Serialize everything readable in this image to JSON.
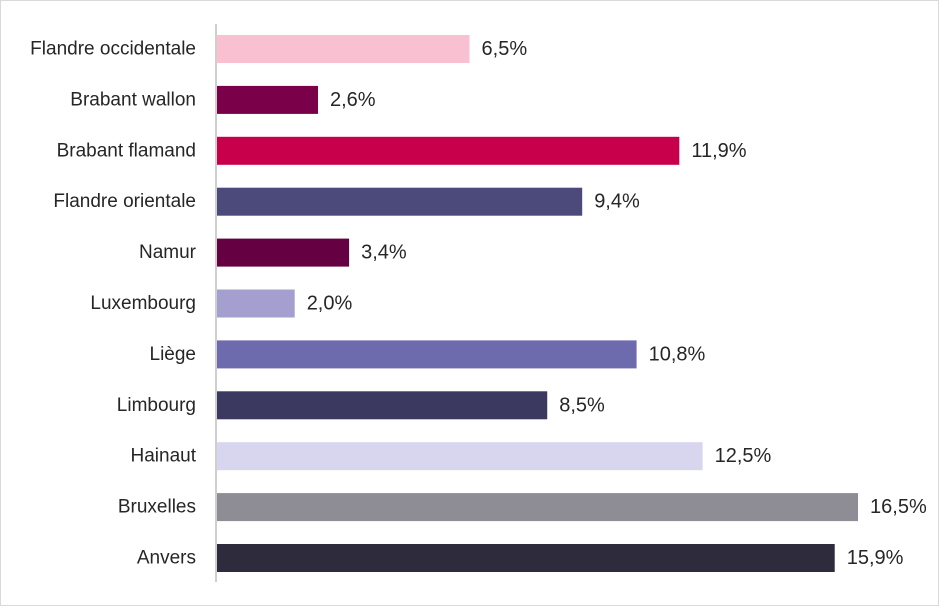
{
  "chart_data": {
    "type": "bar",
    "orientation": "horizontal",
    "title": "",
    "xlabel": "",
    "ylabel": "",
    "grid": false,
    "legend": "none",
    "xlim": [
      0,
      17
    ],
    "categories": [
      "Flandre occidentale",
      "Brabant wallon",
      "Brabant flamand",
      "Flandre orientale",
      "Namur",
      "Luxembourg",
      "Liège",
      "Limbourg",
      "Hainaut",
      "Bruxelles",
      "Anvers"
    ],
    "values": [
      6.5,
      2.6,
      11.9,
      9.4,
      3.4,
      2.0,
      10.8,
      8.5,
      12.5,
      16.5,
      15.9
    ],
    "value_labels": [
      "6,5%",
      "2,6%",
      "11,9%",
      "9,4%",
      "3,4%",
      "2,0%",
      "10,8%",
      "8,5%",
      "12,5%",
      "16,5%",
      "15,9%"
    ],
    "colors": [
      "#f9c0d1",
      "#7a0049",
      "#c8004b",
      "#4b4a7a",
      "#650043",
      "#a59fd0",
      "#6e6aae",
      "#3b3960",
      "#d8d6ee",
      "#8e8d96",
      "#2e2b3c"
    ]
  }
}
